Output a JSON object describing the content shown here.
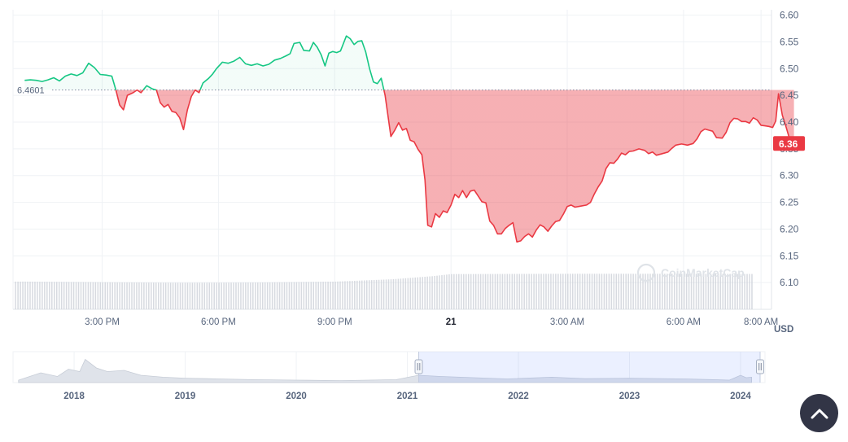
{
  "chart_data": {
    "type": "line",
    "currency_label": "USD",
    "reference": {
      "value": 6.4601,
      "label": "6.4601"
    },
    "current": {
      "value": 6.36,
      "label": "6.36"
    },
    "watermark": "CoinMarketCap",
    "ylim": [
      6.05,
      6.61
    ],
    "y_ticks": [
      {
        "value": 6.6,
        "label": "6.60"
      },
      {
        "value": 6.55,
        "label": "6.55"
      },
      {
        "value": 6.5,
        "label": "6.50"
      },
      {
        "value": 6.45,
        "label": "6.45"
      },
      {
        "value": 6.4,
        "label": "6.40"
      },
      {
        "value": 6.35,
        "label": "6.35"
      },
      {
        "value": 6.3,
        "label": "6.30"
      },
      {
        "value": 6.25,
        "label": "6.25"
      },
      {
        "value": 6.2,
        "label": "6.20"
      },
      {
        "value": 6.15,
        "label": "6.15"
      },
      {
        "value": 6.1,
        "label": "6.10"
      }
    ],
    "xlim_hours": [
      12.7,
      32.27
    ],
    "x_ticks": [
      {
        "hour": 15,
        "label": "3:00 PM",
        "bold": false
      },
      {
        "hour": 18,
        "label": "6:00 PM",
        "bold": false
      },
      {
        "hour": 21,
        "label": "9:00 PM",
        "bold": false
      },
      {
        "hour": 24,
        "label": "21",
        "bold": true
      },
      {
        "hour": 27,
        "label": "3:00 AM",
        "bold": false
      },
      {
        "hour": 30,
        "label": "6:00 AM",
        "bold": false
      },
      {
        "hour": 32,
        "label": "8:00 AM",
        "bold": false
      }
    ],
    "series": [
      {
        "points": [
          [
            13.0,
            6.478
          ],
          [
            13.15,
            6.479
          ],
          [
            13.3,
            6.478
          ],
          [
            13.45,
            6.476
          ],
          [
            13.6,
            6.479
          ],
          [
            13.75,
            6.483
          ],
          [
            13.9,
            6.477
          ],
          [
            14.05,
            6.486
          ],
          [
            14.2,
            6.49
          ],
          [
            14.35,
            6.487
          ],
          [
            14.5,
            6.492
          ],
          [
            14.65,
            6.51
          ],
          [
            14.8,
            6.502
          ],
          [
            14.95,
            6.489
          ],
          [
            15.1,
            6.488
          ],
          [
            15.25,
            6.486
          ],
          [
            15.35,
            6.461
          ],
          [
            15.45,
            6.432
          ],
          [
            15.55,
            6.423
          ],
          [
            15.65,
            6.45
          ],
          [
            15.8,
            6.455
          ],
          [
            15.9,
            6.46
          ],
          [
            16.0,
            6.455
          ],
          [
            16.15,
            6.468
          ],
          [
            16.3,
            6.462
          ],
          [
            16.4,
            6.46
          ],
          [
            16.5,
            6.436
          ],
          [
            16.6,
            6.428
          ],
          [
            16.7,
            6.433
          ],
          [
            16.8,
            6.42
          ],
          [
            16.9,
            6.418
          ],
          [
            17.0,
            6.408
          ],
          [
            17.1,
            6.386
          ],
          [
            17.2,
            6.423
          ],
          [
            17.3,
            6.448
          ],
          [
            17.4,
            6.46
          ],
          [
            17.5,
            6.455
          ],
          [
            17.6,
            6.473
          ],
          [
            17.75,
            6.482
          ],
          [
            17.85,
            6.49
          ],
          [
            17.95,
            6.5
          ],
          [
            18.1,
            6.512
          ],
          [
            18.25,
            6.51
          ],
          [
            18.4,
            6.514
          ],
          [
            18.55,
            6.521
          ],
          [
            18.7,
            6.509
          ],
          [
            18.85,
            6.506
          ],
          [
            19.0,
            6.509
          ],
          [
            19.15,
            6.505
          ],
          [
            19.3,
            6.508
          ],
          [
            19.45,
            6.516
          ],
          [
            19.6,
            6.519
          ],
          [
            19.75,
            6.524
          ],
          [
            19.85,
            6.528
          ],
          [
            19.95,
            6.547
          ],
          [
            20.1,
            6.549
          ],
          [
            20.2,
            6.534
          ],
          [
            20.35,
            6.533
          ],
          [
            20.45,
            6.549
          ],
          [
            20.55,
            6.54
          ],
          [
            20.65,
            6.526
          ],
          [
            20.75,
            6.505
          ],
          [
            20.85,
            6.529
          ],
          [
            20.95,
            6.532
          ],
          [
            21.05,
            6.53
          ],
          [
            21.15,
            6.533
          ],
          [
            21.3,
            6.561
          ],
          [
            21.4,
            6.556
          ],
          [
            21.5,
            6.545
          ],
          [
            21.6,
            6.551
          ],
          [
            21.7,
            6.552
          ],
          [
            21.8,
            6.531
          ],
          [
            21.9,
            6.5
          ],
          [
            22.0,
            6.475
          ],
          [
            22.1,
            6.472
          ],
          [
            22.2,
            6.482
          ],
          [
            22.3,
            6.45
          ],
          [
            22.38,
            6.409
          ],
          [
            22.45,
            6.373
          ],
          [
            22.55,
            6.385
          ],
          [
            22.65,
            6.399
          ],
          [
            22.75,
            6.385
          ],
          [
            22.85,
            6.388
          ],
          [
            22.95,
            6.366
          ],
          [
            23.05,
            6.363
          ],
          [
            23.15,
            6.349
          ],
          [
            23.25,
            6.339
          ],
          [
            23.33,
            6.292
          ],
          [
            23.4,
            6.207
          ],
          [
            23.5,
            6.204
          ],
          [
            23.6,
            6.229
          ],
          [
            23.7,
            6.222
          ],
          [
            23.8,
            6.234
          ],
          [
            23.9,
            6.231
          ],
          [
            24.0,
            6.245
          ],
          [
            24.1,
            6.265
          ],
          [
            24.2,
            6.259
          ],
          [
            24.3,
            6.272
          ],
          [
            24.4,
            6.259
          ],
          [
            24.5,
            6.271
          ],
          [
            24.6,
            6.273
          ],
          [
            24.7,
            6.262
          ],
          [
            24.8,
            6.251
          ],
          [
            24.9,
            6.249
          ],
          [
            25.0,
            6.215
          ],
          [
            25.1,
            6.207
          ],
          [
            25.2,
            6.191
          ],
          [
            25.3,
            6.191
          ],
          [
            25.4,
            6.201
          ],
          [
            25.5,
            6.207
          ],
          [
            25.6,
            6.212
          ],
          [
            25.7,
            6.176
          ],
          [
            25.8,
            6.178
          ],
          [
            25.9,
            6.186
          ],
          [
            26.0,
            6.191
          ],
          [
            26.1,
            6.185
          ],
          [
            26.2,
            6.198
          ],
          [
            26.3,
            6.208
          ],
          [
            26.4,
            6.204
          ],
          [
            26.5,
            6.196
          ],
          [
            26.6,
            6.206
          ],
          [
            26.7,
            6.214
          ],
          [
            26.8,
            6.216
          ],
          [
            26.9,
            6.228
          ],
          [
            27.0,
            6.242
          ],
          [
            27.1,
            6.245
          ],
          [
            27.2,
            6.241
          ],
          [
            27.35,
            6.243
          ],
          [
            27.5,
            6.245
          ],
          [
            27.6,
            6.25
          ],
          [
            27.7,
            6.266
          ],
          [
            27.8,
            6.279
          ],
          [
            27.9,
            6.29
          ],
          [
            28.0,
            6.313
          ],
          [
            28.1,
            6.324
          ],
          [
            28.2,
            6.323
          ],
          [
            28.3,
            6.331
          ],
          [
            28.4,
            6.342
          ],
          [
            28.5,
            6.339
          ],
          [
            28.6,
            6.345
          ],
          [
            28.7,
            6.346
          ],
          [
            28.85,
            6.35
          ],
          [
            29.0,
            6.347
          ],
          [
            29.1,
            6.341
          ],
          [
            29.2,
            6.344
          ],
          [
            29.3,
            6.338
          ],
          [
            29.45,
            6.341
          ],
          [
            29.6,
            6.344
          ],
          [
            29.7,
            6.351
          ],
          [
            29.8,
            6.357
          ],
          [
            29.95,
            6.359
          ],
          [
            30.1,
            6.357
          ],
          [
            30.25,
            6.36
          ],
          [
            30.35,
            6.369
          ],
          [
            30.45,
            6.382
          ],
          [
            30.55,
            6.387
          ],
          [
            30.65,
            6.385
          ],
          [
            30.75,
            6.383
          ],
          [
            30.85,
            6.371
          ],
          [
            31.0,
            6.37
          ],
          [
            31.1,
            6.381
          ],
          [
            31.2,
            6.399
          ],
          [
            31.3,
            6.407
          ],
          [
            31.4,
            6.406
          ],
          [
            31.5,
            6.401
          ],
          [
            31.6,
            6.401
          ],
          [
            31.7,
            6.398
          ],
          [
            31.8,
            6.408
          ],
          [
            31.9,
            6.404
          ],
          [
            32.0,
            6.394
          ],
          [
            32.1,
            6.393
          ],
          [
            32.2,
            6.392
          ],
          [
            32.3,
            6.39
          ],
          [
            32.38,
            6.402
          ],
          [
            32.45,
            6.453
          ],
          [
            32.55,
            6.413
          ],
          [
            32.65,
            6.39
          ],
          [
            32.75,
            6.365
          ],
          [
            32.85,
            6.36
          ]
        ]
      }
    ],
    "volume_level": [
      [
        13.0,
        0.92
      ],
      [
        15.0,
        0.9
      ],
      [
        17.0,
        0.88
      ],
      [
        19.0,
        0.89
      ],
      [
        21.0,
        0.92
      ],
      [
        22.5,
        1.0
      ],
      [
        23.5,
        1.1
      ],
      [
        24.0,
        1.17
      ],
      [
        27.0,
        1.18
      ],
      [
        30.0,
        1.18
      ],
      [
        32.85,
        1.17
      ]
    ],
    "navigator": {
      "year_labels": [
        "2018",
        "2019",
        "2020",
        "2021",
        "2022",
        "2023",
        "2024"
      ],
      "selected_range": [
        "2021",
        "2024"
      ],
      "overview": [
        [
          2017.5,
          0.1
        ],
        [
          2017.7,
          0.4
        ],
        [
          2017.85,
          0.25
        ],
        [
          2017.95,
          0.55
        ],
        [
          2018.05,
          0.45
        ],
        [
          2018.1,
          0.95
        ],
        [
          2018.2,
          0.6
        ],
        [
          2018.3,
          0.45
        ],
        [
          2018.45,
          0.5
        ],
        [
          2018.6,
          0.3
        ],
        [
          2018.8,
          0.22
        ],
        [
          2019.0,
          0.18
        ],
        [
          2019.3,
          0.15
        ],
        [
          2019.6,
          0.12
        ],
        [
          2020.0,
          0.1
        ],
        [
          2020.4,
          0.08
        ],
        [
          2020.9,
          0.12
        ],
        [
          2021.1,
          0.3
        ],
        [
          2021.3,
          0.25
        ],
        [
          2021.6,
          0.2
        ],
        [
          2021.9,
          0.15
        ],
        [
          2022.3,
          0.22
        ],
        [
          2022.6,
          0.16
        ],
        [
          2023.0,
          0.18
        ],
        [
          2023.5,
          0.15
        ],
        [
          2023.9,
          0.1
        ],
        [
          2024.0,
          0.3
        ],
        [
          2024.05,
          0.2
        ],
        [
          2024.1,
          0.22
        ]
      ]
    }
  }
}
